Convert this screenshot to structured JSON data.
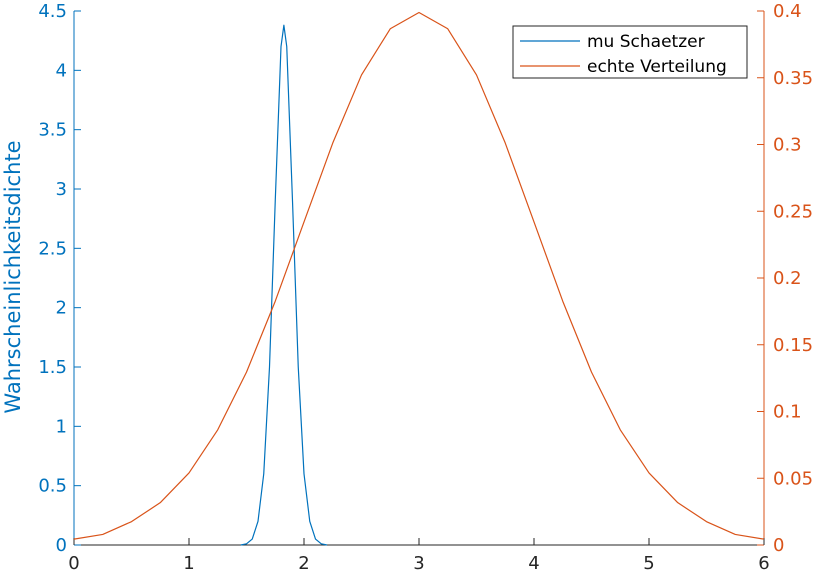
{
  "chart_data": {
    "type": "line",
    "xlim": [
      0,
      6
    ],
    "x_ticks": [
      "0",
      "1",
      "2",
      "3",
      "4",
      "5",
      "6"
    ],
    "y_left": {
      "label": "Wahrscheinlichkeitsdichte",
      "lim": [
        0,
        4.5
      ],
      "ticks": [
        "0",
        "0.5",
        "1",
        "1.5",
        "2",
        "2.5",
        "3",
        "3.5",
        "4",
        "4.5"
      ],
      "color": "#0072BD"
    },
    "y_right": {
      "label": "",
      "lim": [
        0,
        0.4
      ],
      "ticks": [
        "0",
        "0.05",
        "0.1",
        "0.15",
        "0.2",
        "0.25",
        "0.3",
        "0.35",
        "0.4"
      ],
      "color": "#D95319"
    },
    "grid": false,
    "legend_position": "top-right",
    "series": [
      {
        "name": "mu Schaetzer",
        "axis": "left",
        "color": "#0072BD",
        "x": [
          1.45,
          1.5,
          1.55,
          1.6,
          1.65,
          1.7,
          1.75,
          1.8,
          1.825,
          1.85,
          1.9,
          1.95,
          2.0,
          2.05,
          2.1,
          2.15,
          2.2
        ],
        "y": [
          0.0,
          0.01,
          0.05,
          0.2,
          0.6,
          1.5,
          2.9,
          4.2,
          4.38,
          4.2,
          2.9,
          1.5,
          0.6,
          0.2,
          0.05,
          0.01,
          0.0
        ]
      },
      {
        "name": "echte Verteilung",
        "axis": "right",
        "color": "#D95319",
        "x": [
          0,
          0.25,
          0.5,
          0.75,
          1.0,
          1.25,
          1.5,
          1.75,
          2.0,
          2.25,
          2.5,
          2.75,
          3.0,
          3.25,
          3.5,
          3.75,
          4.0,
          4.25,
          4.5,
          4.75,
          5.0,
          5.25,
          5.5,
          5.75,
          6.0
        ],
        "y": [
          0.0044,
          0.0079,
          0.0175,
          0.0317,
          0.054,
          0.0863,
          0.1295,
          0.1826,
          0.242,
          0.3011,
          0.3521,
          0.3867,
          0.3989,
          0.3867,
          0.3521,
          0.3011,
          0.242,
          0.1826,
          0.1295,
          0.0863,
          0.054,
          0.0317,
          0.0175,
          0.0079,
          0.0044
        ]
      }
    ]
  }
}
